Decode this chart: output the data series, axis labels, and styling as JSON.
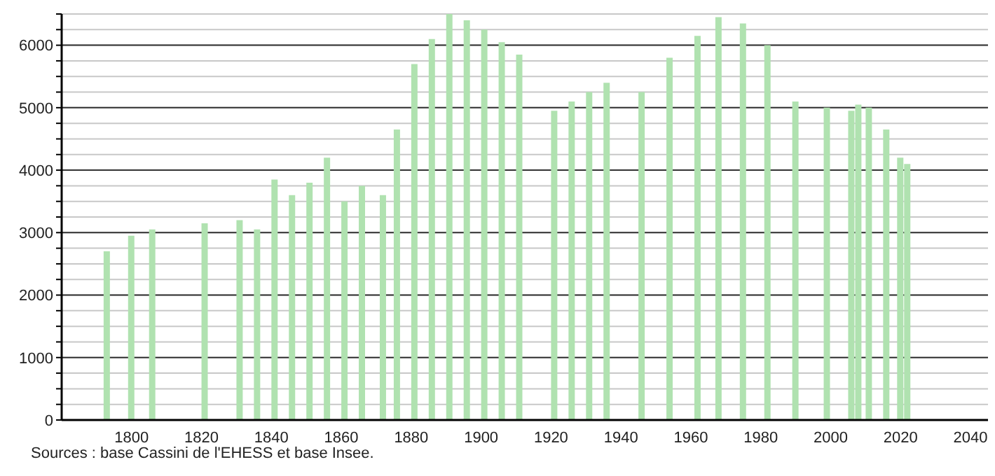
{
  "chart_data": {
    "type": "bar",
    "x": [
      1793,
      1800,
      1806,
      1821,
      1831,
      1836,
      1841,
      1846,
      1851,
      1856,
      1861,
      1866,
      1872,
      1876,
      1881,
      1886,
      1891,
      1896,
      1901,
      1906,
      1911,
      1921,
      1926,
      1931,
      1936,
      1946,
      1954,
      1962,
      1968,
      1975,
      1982,
      1990,
      1999,
      2006,
      2008,
      2011,
      2016,
      2020,
      2022
    ],
    "values": [
      2700,
      2950,
      3050,
      3150,
      3200,
      3050,
      3850,
      3600,
      3800,
      4200,
      3500,
      3750,
      3600,
      4650,
      5700,
      6100,
      6500,
      6400,
      6250,
      6050,
      5850,
      4950,
      5100,
      5250,
      5400,
      5250,
      5800,
      6150,
      6450,
      6350,
      6000,
      5100,
      5000,
      4950,
      5050,
      5000,
      4650,
      4200,
      4100
    ],
    "color": "#b0e2b0",
    "xlim": [
      1780,
      2045
    ],
    "xticks": [
      1800,
      1820,
      1840,
      1860,
      1880,
      1900,
      1920,
      1940,
      1960,
      1980,
      2000,
      2020,
      2040
    ],
    "ylim": [
      0,
      6500
    ],
    "yticks": [
      0,
      {
        "value": 250,
        "label": null
      },
      {
        "value": 500,
        "label": null
      },
      {
        "value": 750,
        "label": null
      },
      1000,
      {
        "value": 1250,
        "label": null
      },
      {
        "value": 1500,
        "label": null
      },
      {
        "value": 1750,
        "label": null
      },
      2000,
      {
        "value": 2250,
        "label": null
      },
      {
        "value": 2500,
        "label": null
      },
      {
        "value": 2750,
        "label": null
      },
      3000,
      {
        "value": 3250,
        "label": null
      },
      {
        "value": 3500,
        "label": null
      },
      {
        "value": 3750,
        "label": null
      },
      4000,
      {
        "value": 4250,
        "label": null
      },
      {
        "value": 4500,
        "label": null
      },
      {
        "value": 4750,
        "label": null
      },
      5000,
      {
        "value": 5250,
        "label": null
      },
      {
        "value": 5500,
        "label": null
      },
      {
        "value": 5750,
        "label": null
      },
      6000,
      {
        "value": 6250,
        "label": null
      },
      {
        "value": 6500,
        "label": null
      }
    ],
    "grid": "y",
    "annotations": [
      "Sources : base Cassini de l'EHESS et base Insee."
    ]
  }
}
